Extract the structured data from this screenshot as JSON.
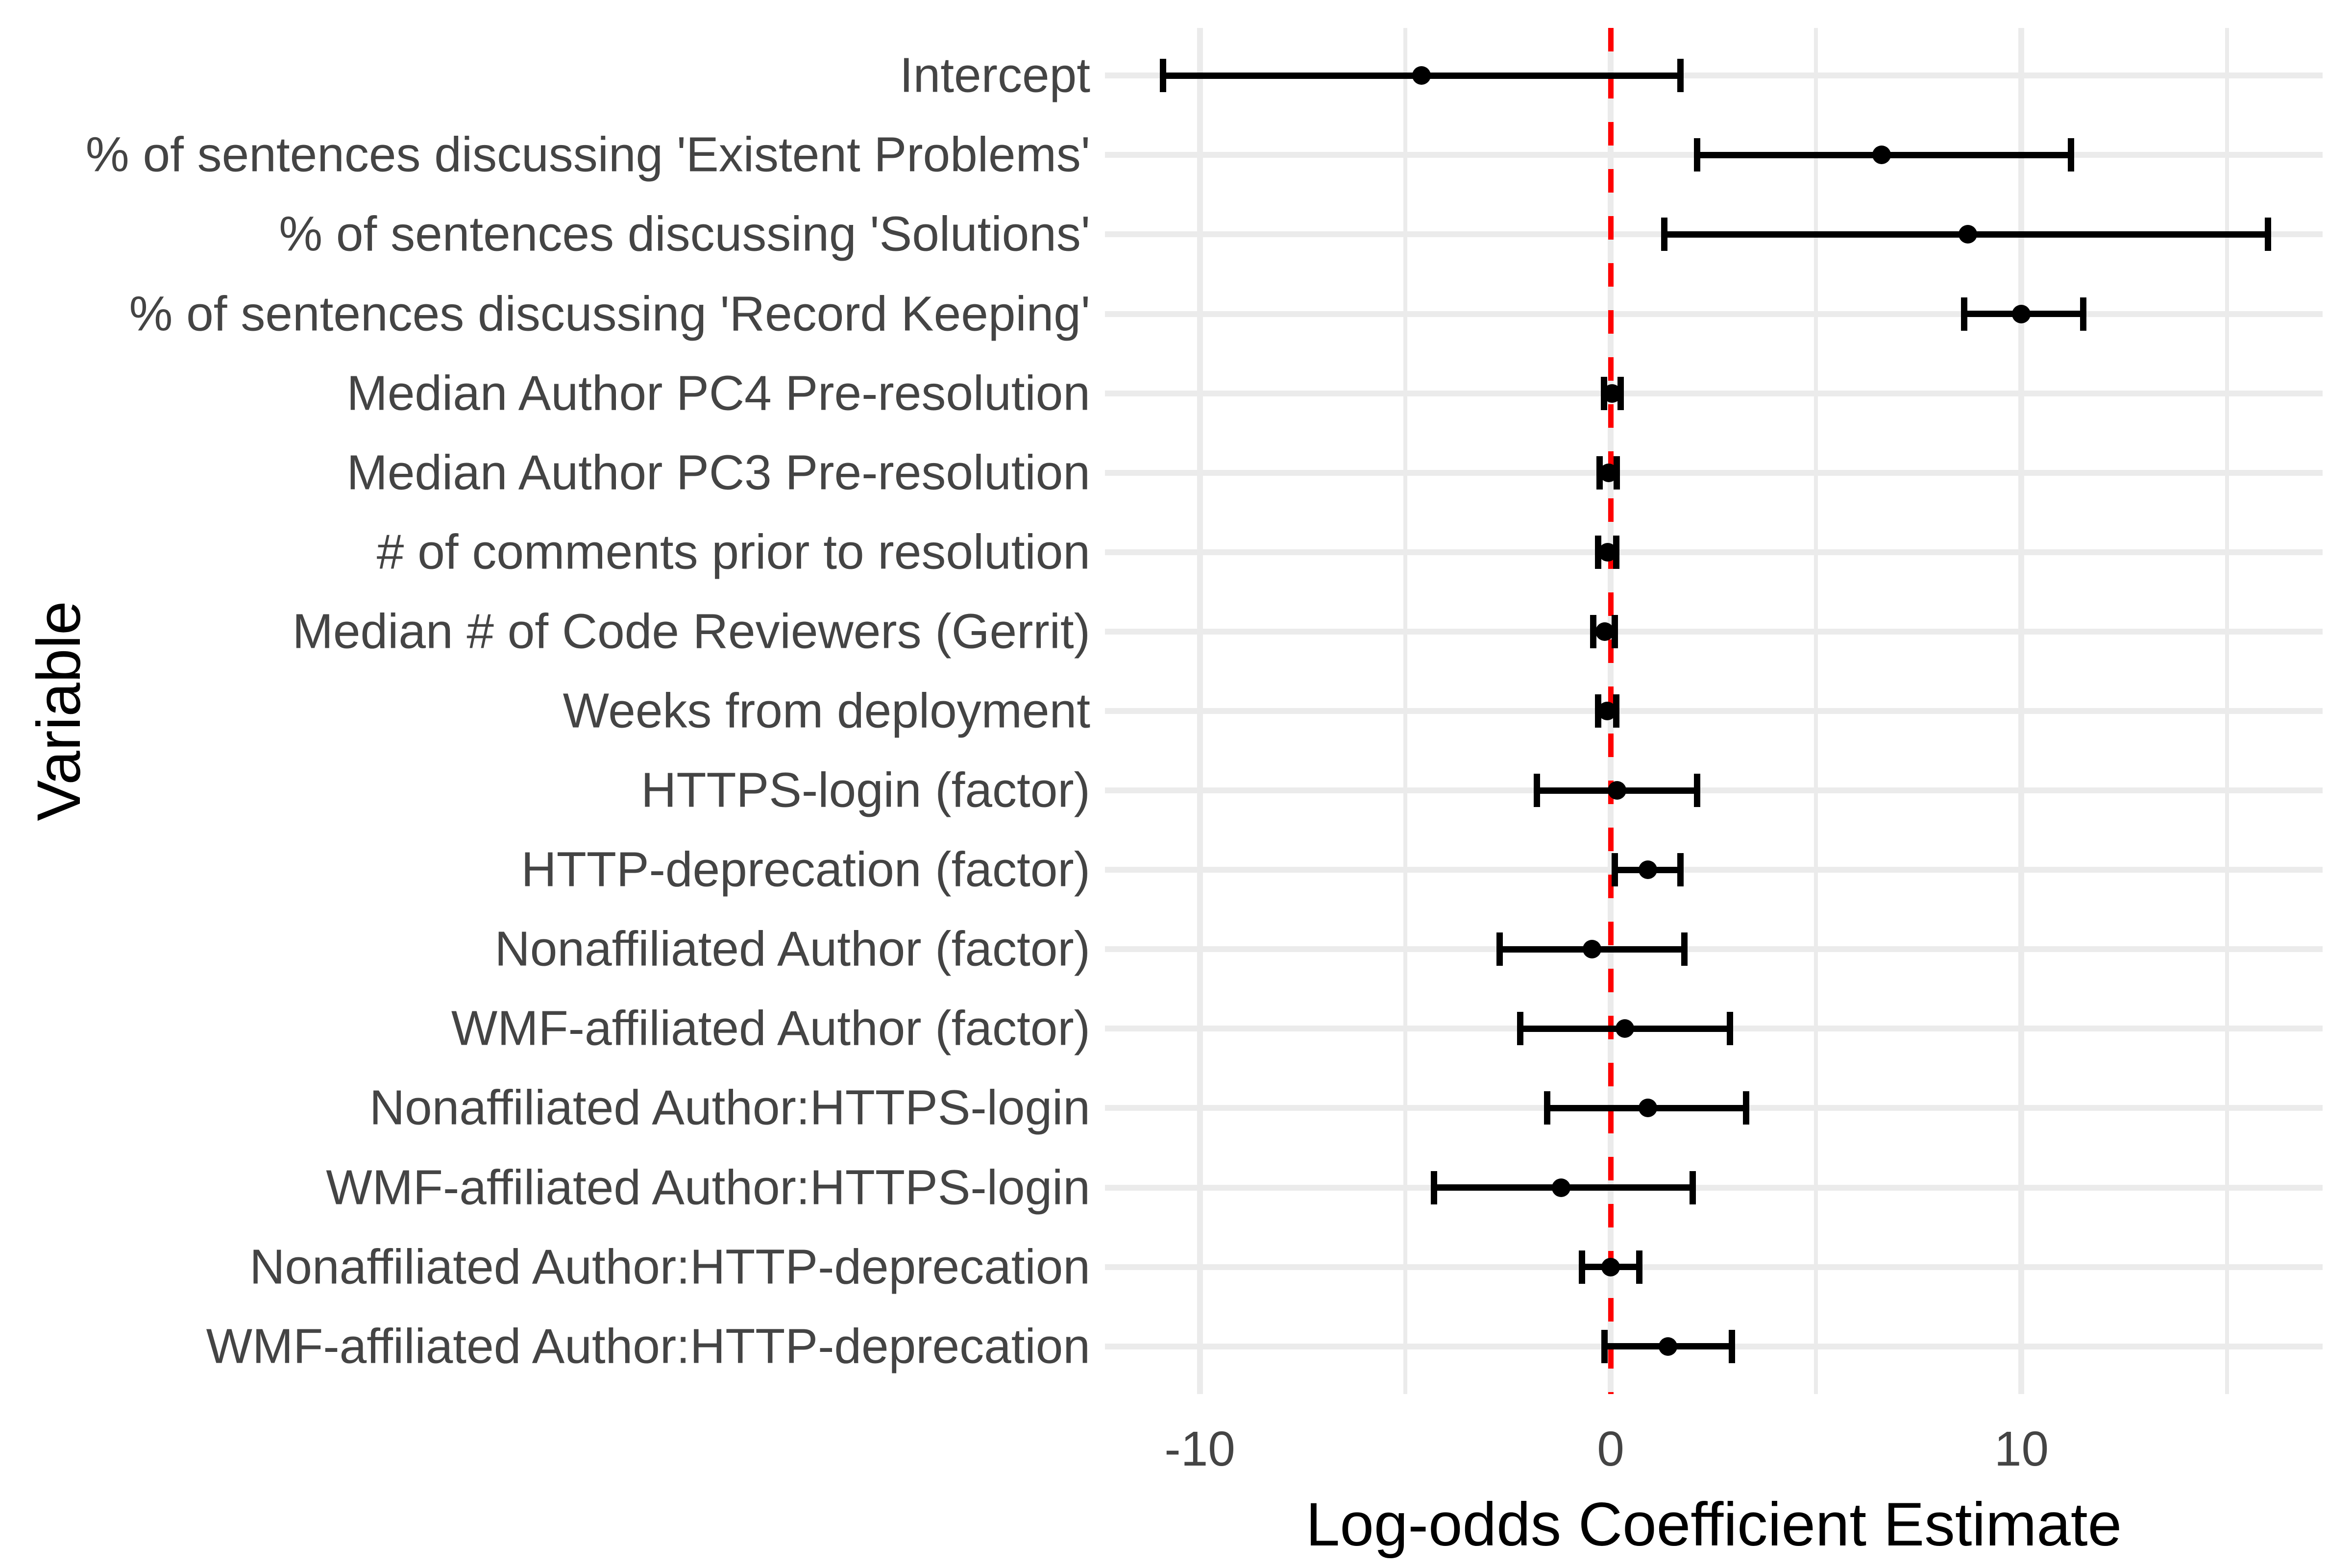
{
  "figure": {
    "background_color": "#ffffff",
    "x_axis_title": "Log-odds Coefficient Estimate",
    "y_axis_title": "Variable"
  },
  "chart_data": {
    "type": "scatter",
    "subtype": "dot-and-whisker coefficient plot (horizontal error bars)",
    "title": "",
    "xlabel": "Log-odds Coefficient Estimate",
    "ylabel": "Variable",
    "xlim": [
      -12.31,
      17.33
    ],
    "x_tick_values": [
      -10,
      0,
      10
    ],
    "x_tick_labels": [
      "-10",
      "0",
      "10"
    ],
    "x_minor_gridline_values": [
      -5,
      5,
      15
    ],
    "grid": true,
    "legend": "none",
    "zero_reference_line": {
      "x": 0,
      "style": "dashed",
      "color": "#ff0000"
    },
    "categories": [
      "Intercept",
      "% of sentences discussing 'Existent Problems'",
      "% of sentences discussing 'Solutions'",
      "% of sentences discussing 'Record Keeping'",
      "Median Author PC4 Pre-resolution",
      "Median Author PC3 Pre-resolution",
      "# of comments prior to resolution",
      "Median # of Code Reviewers (Gerrit)",
      "Weeks from deployment",
      "HTTPS-login (factor)",
      "HTTP-deprecation (factor)",
      "Nonaffiliated Author (factor)",
      "WMF-affiliated Author (factor)",
      "Nonaffiliated Author:HTTPS-login",
      "WMF-affiliated Author:HTTPS-login",
      "Nonaffiliated Author:HTTP-deprecation",
      "WMF-affiliated Author:HTTP-deprecation"
    ],
    "rows": [
      {
        "label": "Intercept",
        "estimate": -4.6,
        "ci_low": -10.9,
        "ci_high": 1.7
      },
      {
        "label": "% of sentences discussing 'Existent Problems'",
        "estimate": 6.6,
        "ci_low": 2.1,
        "ci_high": 11.2
      },
      {
        "label": "% of sentences discussing 'Solutions'",
        "estimate": 8.7,
        "ci_low": 1.3,
        "ci_high": 16.0
      },
      {
        "label": "% of sentences discussing 'Record Keeping'",
        "estimate": 10.0,
        "ci_low": 8.6,
        "ci_high": 11.5
      },
      {
        "label": "Median Author PC4 Pre-resolution",
        "estimate": 0.04,
        "ci_low": -0.16,
        "ci_high": 0.24
      },
      {
        "label": "Median Author PC3 Pre-resolution",
        "estimate": -0.05,
        "ci_low": -0.27,
        "ci_high": 0.15
      },
      {
        "label": "# of comments prior to resolution",
        "estimate": -0.07,
        "ci_low": -0.3,
        "ci_high": 0.14
      },
      {
        "label": "Median # of Code Reviewers (Gerrit)",
        "estimate": -0.14,
        "ci_low": -0.42,
        "ci_high": 0.1
      },
      {
        "label": "Weeks from deployment",
        "estimate": -0.08,
        "ci_low": -0.3,
        "ci_high": 0.14
      },
      {
        "label": "HTTPS-login (factor)",
        "estimate": 0.16,
        "ci_low": -1.8,
        "ci_high": 2.1
      },
      {
        "label": "HTTP-deprecation (factor)",
        "estimate": 0.9,
        "ci_low": 0.1,
        "ci_high": 1.7
      },
      {
        "label": "Nonaffiliated Author (factor)",
        "estimate": -0.45,
        "ci_low": -2.7,
        "ci_high": 1.8
      },
      {
        "label": "WMF-affiliated Author (factor)",
        "estimate": 0.35,
        "ci_low": -2.2,
        "ci_high": 2.9
      },
      {
        "label": "Nonaffiliated Author:HTTPS-login",
        "estimate": 0.9,
        "ci_low": -1.55,
        "ci_high": 3.3
      },
      {
        "label": "WMF-affiliated Author:HTTPS-login",
        "estimate": -1.2,
        "ci_low": -4.3,
        "ci_high": 2.0
      },
      {
        "label": "Nonaffiliated Author:HTTP-deprecation",
        "estimate": 0.0,
        "ci_low": -0.7,
        "ci_high": 0.7
      },
      {
        "label": "WMF-affiliated Author:HTTP-deprecation",
        "estimate": 1.4,
        "ci_low": -0.15,
        "ci_high": 2.95
      }
    ],
    "colors": {
      "point": "#000000",
      "error_bar": "#000000",
      "reference_line": "#ff0000",
      "gridline": "#ebebeb",
      "axis_text": "#444444",
      "axis_title": "#000000"
    }
  }
}
